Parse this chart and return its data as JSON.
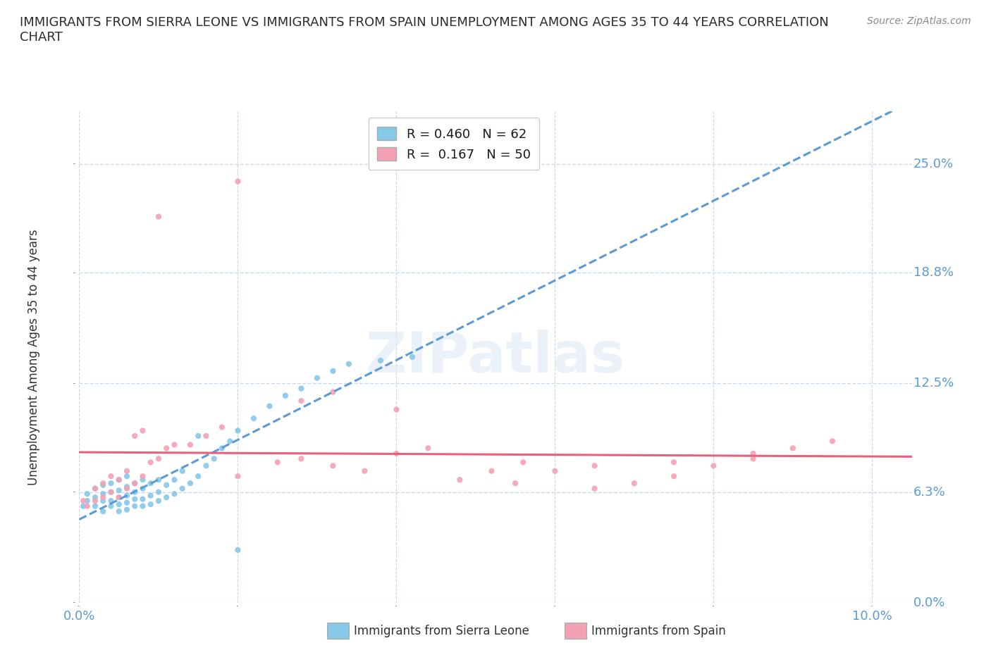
{
  "title": "IMMIGRANTS FROM SIERRA LEONE VS IMMIGRANTS FROM SPAIN UNEMPLOYMENT AMONG AGES 35 TO 44 YEARS CORRELATION\nCHART",
  "source_text": "Source: ZipAtlas.com",
  "ylabel": "Unemployment Among Ages 35 to 44 years",
  "xlim": [
    0.0,
    0.105
  ],
  "ylim": [
    0.0,
    0.28
  ],
  "yticks": [
    0.0,
    0.063,
    0.125,
    0.188,
    0.25
  ],
  "ytick_labels": [
    "0.0%",
    "6.3%",
    "12.5%",
    "18.8%",
    "25.0%"
  ],
  "xticks": [
    0.0,
    0.02,
    0.04,
    0.06,
    0.08,
    0.1
  ],
  "xtick_labels": [
    "0.0%",
    "",
    "",
    "",
    "",
    "10.0%"
  ],
  "sierra_leone_R": 0.46,
  "sierra_leone_N": 62,
  "spain_R": 0.167,
  "spain_N": 50,
  "sierra_leone_color": "#85C8E8",
  "spain_color": "#F4A0B5",
  "sierra_leone_line_color": "#5B9BD5",
  "spain_line_color": "#E8607A",
  "grid_color": "#C8D8EC",
  "background_color": "#FFFFFF",
  "tick_color": "#5B9BD5",
  "sierra_leone_x": [
    0.0005,
    0.001,
    0.001,
    0.002,
    0.002,
    0.002,
    0.003,
    0.003,
    0.003,
    0.003,
    0.004,
    0.004,
    0.004,
    0.004,
    0.005,
    0.005,
    0.005,
    0.005,
    0.005,
    0.006,
    0.006,
    0.006,
    0.006,
    0.006,
    0.007,
    0.007,
    0.007,
    0.007,
    0.008,
    0.008,
    0.008,
    0.008,
    0.009,
    0.009,
    0.009,
    0.01,
    0.01,
    0.01,
    0.011,
    0.011,
    0.012,
    0.012,
    0.013,
    0.013,
    0.014,
    0.015,
    0.016,
    0.017,
    0.018,
    0.019,
    0.02,
    0.022,
    0.024,
    0.026,
    0.028,
    0.03,
    0.032,
    0.034,
    0.038,
    0.042,
    0.015,
    0.02
  ],
  "sierra_leone_y": [
    0.055,
    0.058,
    0.062,
    0.055,
    0.06,
    0.065,
    0.052,
    0.058,
    0.062,
    0.067,
    0.055,
    0.058,
    0.063,
    0.068,
    0.052,
    0.056,
    0.06,
    0.064,
    0.07,
    0.053,
    0.057,
    0.061,
    0.066,
    0.072,
    0.055,
    0.059,
    0.063,
    0.068,
    0.055,
    0.059,
    0.065,
    0.07,
    0.056,
    0.061,
    0.068,
    0.058,
    0.063,
    0.07,
    0.06,
    0.067,
    0.062,
    0.07,
    0.065,
    0.075,
    0.068,
    0.072,
    0.078,
    0.082,
    0.088,
    0.092,
    0.098,
    0.105,
    0.112,
    0.118,
    0.122,
    0.128,
    0.132,
    0.136,
    0.138,
    0.14,
    0.095,
    0.03
  ],
  "spain_x": [
    0.0005,
    0.001,
    0.002,
    0.002,
    0.003,
    0.003,
    0.004,
    0.004,
    0.005,
    0.005,
    0.006,
    0.006,
    0.007,
    0.007,
    0.008,
    0.008,
    0.009,
    0.01,
    0.011,
    0.012,
    0.014,
    0.016,
    0.018,
    0.02,
    0.025,
    0.028,
    0.032,
    0.036,
    0.04,
    0.044,
    0.048,
    0.052,
    0.056,
    0.06,
    0.065,
    0.07,
    0.075,
    0.08,
    0.085,
    0.09,
    0.095,
    0.028,
    0.032,
    0.04,
    0.055,
    0.065,
    0.075,
    0.085,
    0.01,
    0.02
  ],
  "spain_y": [
    0.058,
    0.055,
    0.058,
    0.065,
    0.06,
    0.068,
    0.063,
    0.072,
    0.06,
    0.07,
    0.065,
    0.075,
    0.068,
    0.095,
    0.072,
    0.098,
    0.08,
    0.082,
    0.088,
    0.09,
    0.09,
    0.095,
    0.1,
    0.072,
    0.08,
    0.082,
    0.078,
    0.075,
    0.085,
    0.088,
    0.07,
    0.075,
    0.08,
    0.075,
    0.065,
    0.068,
    0.072,
    0.078,
    0.082,
    0.088,
    0.092,
    0.115,
    0.12,
    0.11,
    0.068,
    0.078,
    0.08,
    0.085,
    0.22,
    0.24
  ]
}
